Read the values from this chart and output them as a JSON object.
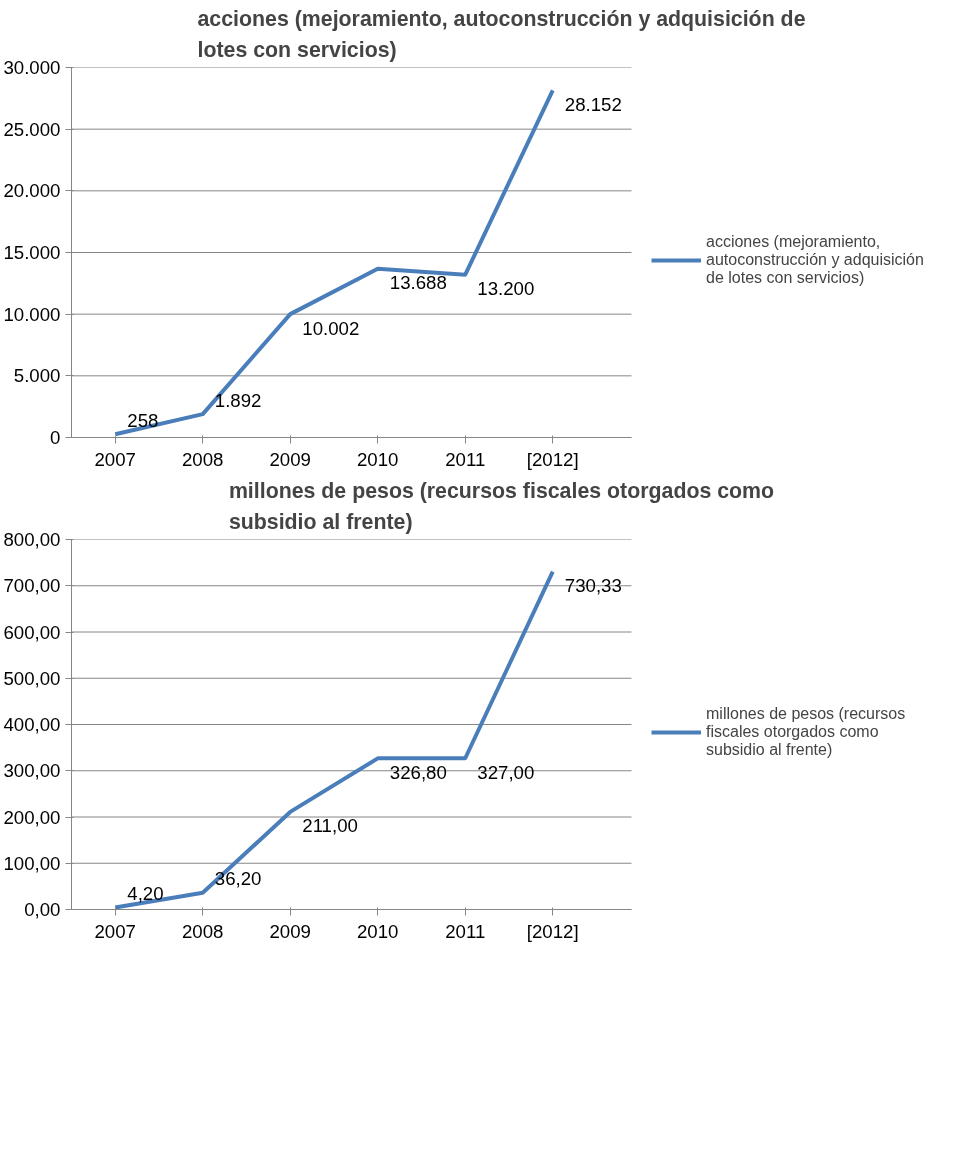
{
  "chart_data": [
    {
      "type": "line",
      "title": "acciones (mejoramiento,  autoconstrucción y adquisición de lotes con servicios)",
      "categories": [
        "2007",
        "2008",
        "2009",
        "2010",
        "2011",
        "[2012]"
      ],
      "series": [
        {
          "name": "acciones (mejoramiento, autoconstrucción y adquisición de lotes con servicios)",
          "color": "#4a7ebb",
          "values": [
            258,
            1892,
            10002,
            13688,
            13200,
            28152
          ],
          "value_labels": [
            "258",
            "1.892",
            "10.002",
            "13.688",
            "13.200",
            "28.152"
          ]
        }
      ],
      "ylim": [
        0,
        30000
      ],
      "yticks": [
        {
          "value": 0,
          "label": "0"
        },
        {
          "value": 5000,
          "label": "5.000"
        },
        {
          "value": 10000,
          "label": "10.000"
        },
        {
          "value": 15000,
          "label": "15.000"
        },
        {
          "value": 20000,
          "label": "20.000"
        },
        {
          "value": 25000,
          "label": "25.000"
        },
        {
          "value": 30000,
          "label": "30.000"
        }
      ],
      "grid": "y",
      "legend": "right",
      "marker": "none",
      "line_style": "solid"
    },
    {
      "type": "line",
      "title": "millones de pesos (recursos fiscales  otorgados como subsidio al frente)",
      "categories": [
        "2007",
        "2008",
        "2009",
        "2010",
        "2011",
        "[2012]"
      ],
      "series": [
        {
          "name": "millones de pesos (recursos fiscales otorgados como subsidio al frente)",
          "color": "#4a7ebb",
          "values": [
            4.2,
            36.2,
            211.0,
            326.8,
            327.0,
            730.33
          ],
          "value_labels": [
            "4,20",
            "36,20",
            "211,00",
            "326,80",
            "327,00",
            "730,33"
          ]
        }
      ],
      "ylim": [
        0,
        800
      ],
      "yticks": [
        {
          "value": 0,
          "label": "0,00"
        },
        {
          "value": 100,
          "label": "100,00"
        },
        {
          "value": 200,
          "label": "200,00"
        },
        {
          "value": 300,
          "label": "300,00"
        },
        {
          "value": 400,
          "label": "400,00"
        },
        {
          "value": 500,
          "label": "500,00"
        },
        {
          "value": 600,
          "label": "600,00"
        },
        {
          "value": 700,
          "label": "700,00"
        },
        {
          "value": 800,
          "label": "800,00"
        }
      ],
      "grid": "y",
      "legend": "right",
      "marker": "none",
      "line_style": "solid"
    }
  ]
}
